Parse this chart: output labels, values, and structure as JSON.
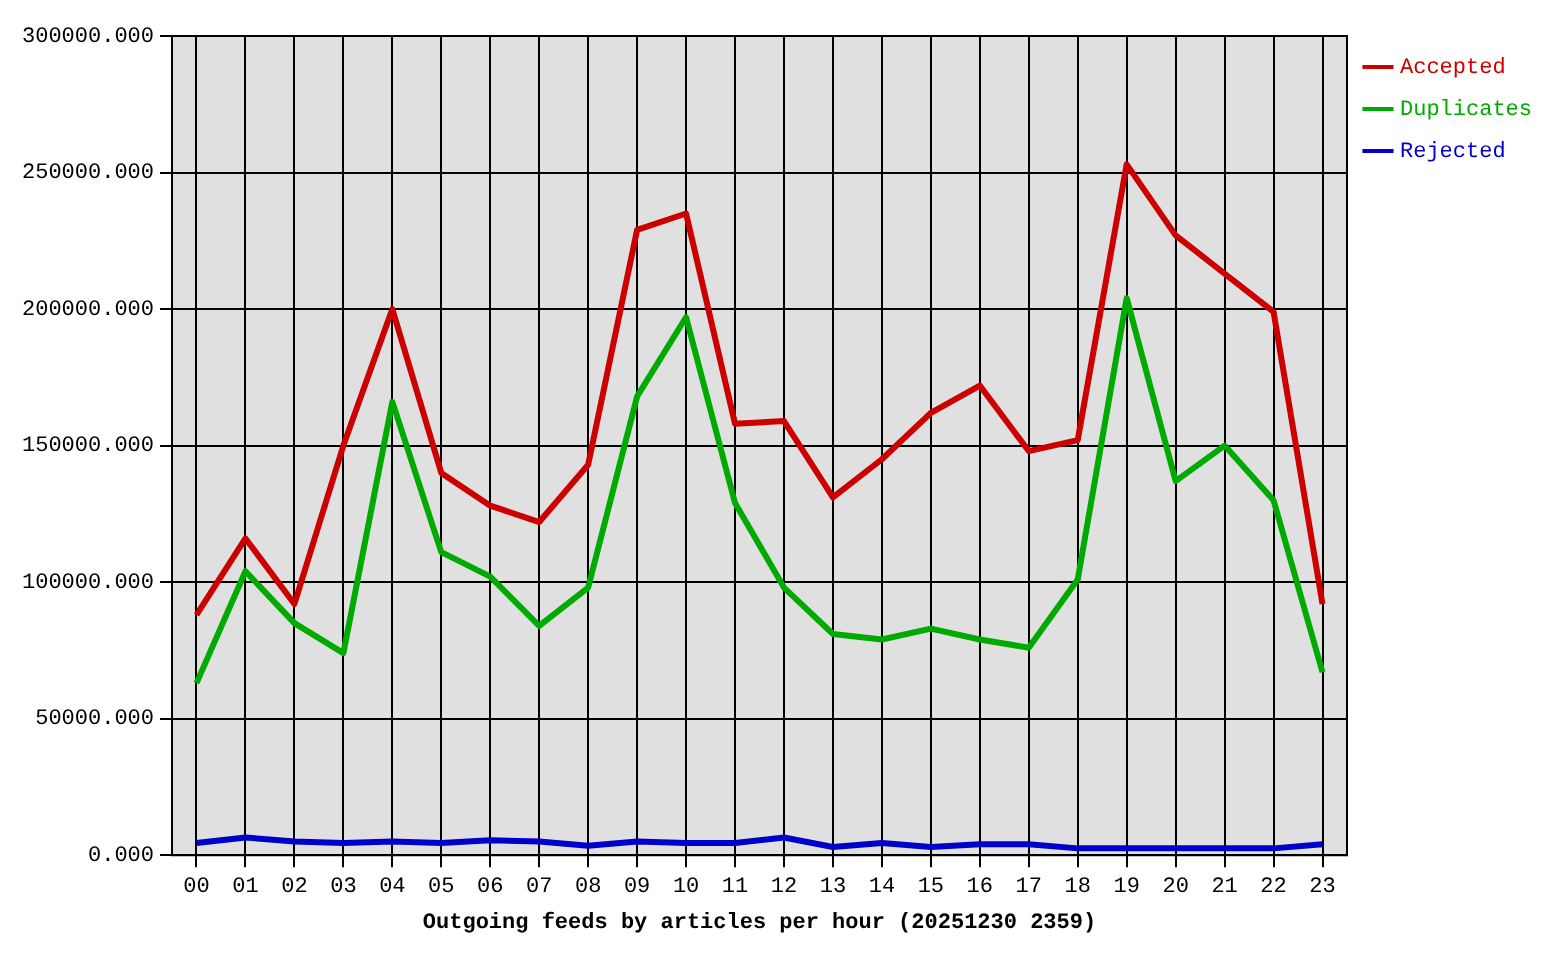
{
  "chart_data": {
    "type": "line",
    "xlabel": "Outgoing feeds by articles per hour (20251230 2359)",
    "categories": [
      "00",
      "01",
      "02",
      "03",
      "04",
      "05",
      "06",
      "07",
      "08",
      "09",
      "10",
      "11",
      "12",
      "13",
      "14",
      "15",
      "16",
      "17",
      "18",
      "19",
      "20",
      "21",
      "22",
      "23"
    ],
    "series": [
      {
        "name": "Accepted",
        "color": "#cc0000",
        "values": [
          88000,
          116000,
          92000,
          150000,
          200000,
          140000,
          128000,
          122000,
          143000,
          229000,
          235000,
          158000,
          159000,
          131000,
          145000,
          162000,
          172000,
          148000,
          152000,
          253000,
          227000,
          213000,
          199000,
          92000
        ]
      },
      {
        "name": "Duplicates",
        "color": "#00aa00",
        "values": [
          63000,
          104000,
          85000,
          74000,
          166000,
          111000,
          102000,
          84000,
          98000,
          168000,
          197000,
          129000,
          98000,
          81000,
          79000,
          83000,
          79000,
          76000,
          101000,
          204000,
          137000,
          150000,
          130000,
          67000
        ]
      },
      {
        "name": "Rejected",
        "color": "#0000cc",
        "values": [
          4500,
          6500,
          5000,
          4500,
          5000,
          4500,
          5500,
          5000,
          3500,
          5000,
          4500,
          4500,
          6500,
          3000,
          4500,
          3000,
          4000,
          4000,
          2500,
          2500,
          2500,
          2500,
          2500,
          4000
        ]
      }
    ],
    "ylim": [
      0,
      300000
    ],
    "yticks": [
      {
        "value": 0,
        "label": "0.000"
      },
      {
        "value": 50000,
        "label": "50000.000"
      },
      {
        "value": 100000,
        "label": "100000.000"
      },
      {
        "value": 150000,
        "label": "150000.000"
      },
      {
        "value": 200000,
        "label": "200000.000"
      },
      {
        "value": 250000,
        "label": "250000.000"
      },
      {
        "value": 300000,
        "label": "300000.000"
      }
    ],
    "grid": true,
    "legend": "right",
    "marker": "none",
    "line_style": "solid"
  }
}
